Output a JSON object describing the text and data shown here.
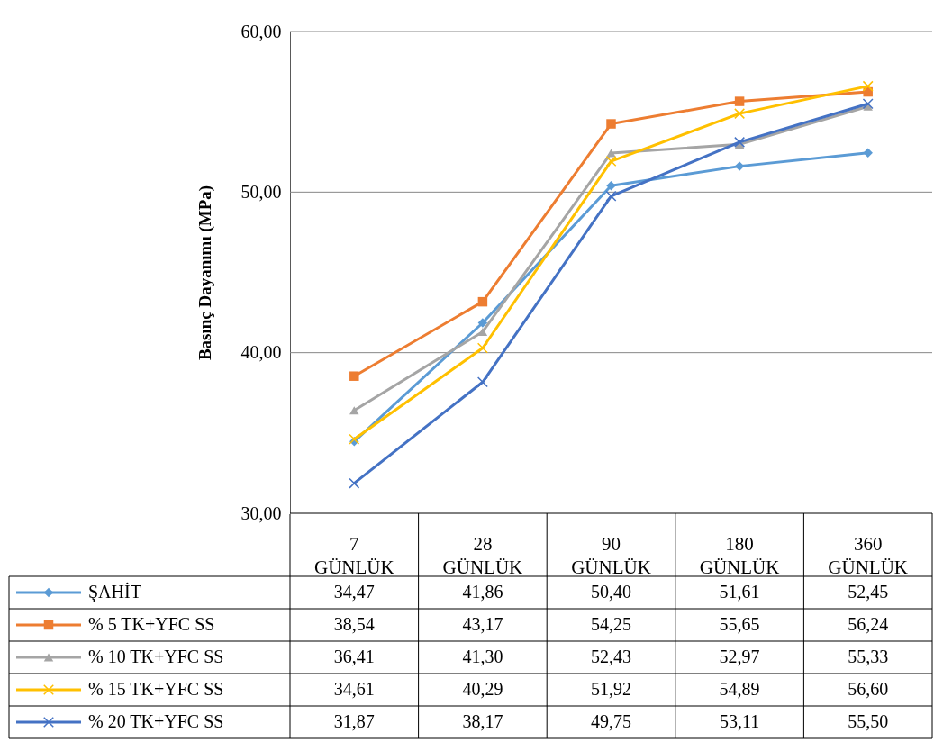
{
  "chart_data": {
    "type": "line",
    "ylabel": "Basınç Dayanımı (MPa)",
    "categories": [
      "7 GÜNLÜK",
      "28 GÜNLÜK",
      "90 GÜNLÜK",
      "180 GÜNLÜK",
      "360 GÜNLÜK"
    ],
    "series": [
      {
        "name": "ŞAHİT",
        "color": "#5b9bd5",
        "marker": "diamond",
        "values": [
          34.47,
          41.86,
          50.4,
          51.61,
          52.45
        ],
        "value_labels": [
          "34,47",
          "41,86",
          "50,40",
          "51,61",
          "52,45"
        ]
      },
      {
        "name": "% 5 TK+YFC SS",
        "color": "#ed7d31",
        "marker": "square",
        "values": [
          38.54,
          43.17,
          54.25,
          55.65,
          56.24
        ],
        "value_labels": [
          "38,54",
          "43,17",
          "54,25",
          "55,65",
          "56,24"
        ]
      },
      {
        "name": "% 10 TK+YFC SS",
        "color": "#a5a5a5",
        "marker": "triangle",
        "values": [
          36.41,
          41.3,
          52.43,
          52.97,
          55.33
        ],
        "value_labels": [
          "36,41",
          "41,30",
          "52,43",
          "52,97",
          "55,33"
        ]
      },
      {
        "name": "% 15 TK+YFC  SS",
        "color": "#ffc000",
        "marker": "cross",
        "values": [
          34.61,
          40.29,
          51.92,
          54.89,
          56.6
        ],
        "value_labels": [
          "34,61",
          "40,29",
          "51,92",
          "54,89",
          "56,60"
        ]
      },
      {
        "name": "% 20 TK+YFC SS",
        "color": "#4472c4",
        "marker": "cross",
        "values": [
          31.87,
          38.17,
          49.75,
          53.11,
          55.5
        ],
        "value_labels": [
          "31,87",
          "38,17",
          "49,75",
          "53,11",
          "55,50"
        ]
      }
    ],
    "ylim": [
      30,
      60
    ],
    "yticks": [
      {
        "value": 30,
        "label": "30,00"
      },
      {
        "value": 40,
        "label": "40,00"
      },
      {
        "value": 50,
        "label": "50,00"
      },
      {
        "value": 60,
        "label": "60,00"
      }
    ],
    "grid": "y",
    "legend": "bottom"
  }
}
